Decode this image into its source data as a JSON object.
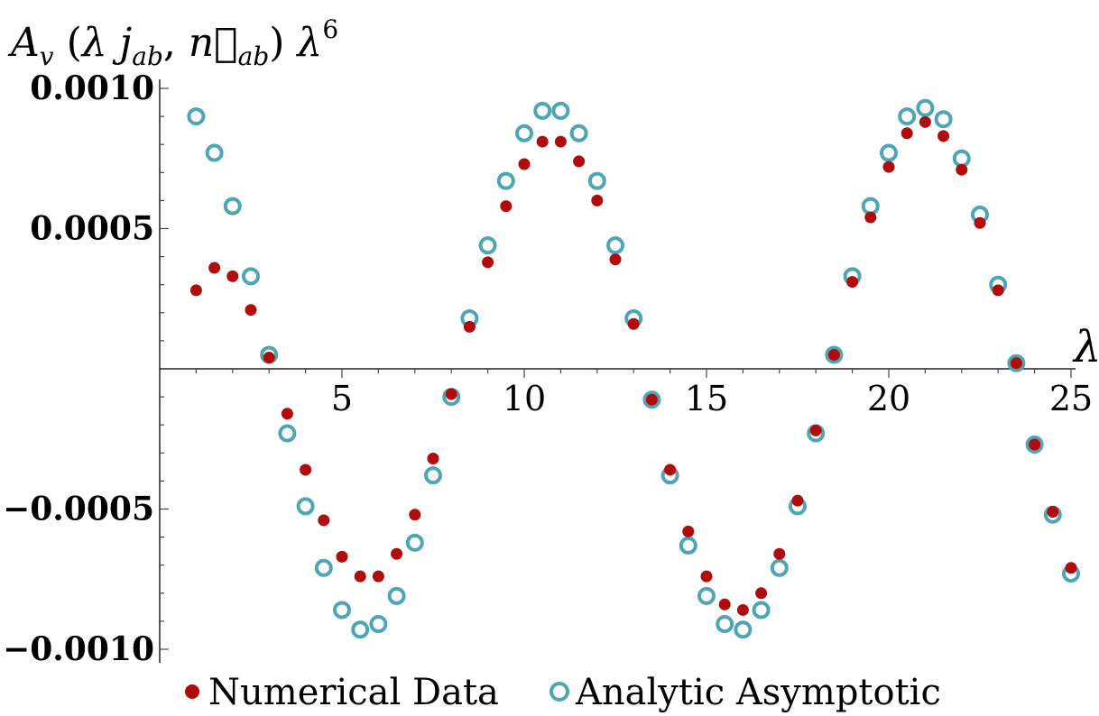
{
  "chart_data": {
    "type": "scatter",
    "ylabel": "A_v (λ j_ab, n⃗_ab) λ^6",
    "xlabel": "λ",
    "xlim": [
      0,
      25
    ],
    "ylim": [
      -0.001,
      0.001
    ],
    "x_ticks": [
      "5",
      "10",
      "15",
      "20",
      "25"
    ],
    "y_ticks": [
      "0.0010",
      "0.0005",
      "-0.0005",
      "-0.0010"
    ],
    "legend_position": "bottom",
    "series": [
      {
        "name": "Numerical Data",
        "marker": "filled-circle",
        "color": "#b00c0c",
        "x": [
          1,
          1.5,
          2,
          2.5,
          3,
          3.5,
          4,
          4.5,
          5,
          5.5,
          6,
          6.5,
          7,
          7.5,
          8,
          8.5,
          9,
          9.5,
          10,
          10.5,
          11,
          11.5,
          12,
          12.5,
          13,
          13.5,
          14,
          14.5,
          15,
          15.5,
          16,
          16.5,
          17,
          17.5,
          18,
          18.5,
          19,
          19.5,
          20,
          20.5,
          21,
          21.5,
          22,
          22.5,
          23,
          23.5,
          24,
          24.5,
          25
        ],
        "y": [
          0.00028,
          0.00036,
          0.00033,
          0.00021,
          4e-05,
          -0.00016,
          -0.00036,
          -0.00054,
          -0.00067,
          -0.00074,
          -0.00074,
          -0.00066,
          -0.00052,
          -0.00032,
          -9e-05,
          0.00015,
          0.00038,
          0.00058,
          0.00073,
          0.00081,
          0.00081,
          0.00074,
          0.0006,
          0.00039,
          0.00016,
          -0.00011,
          -0.00036,
          -0.00058,
          -0.00074,
          -0.00084,
          -0.00086,
          -0.0008,
          -0.00066,
          -0.00047,
          -0.00022,
          5e-05,
          0.00031,
          0.00054,
          0.00072,
          0.00084,
          0.00088,
          0.00083,
          0.00071,
          0.00052,
          0.00028,
          2e-05,
          -0.00027,
          -0.00051,
          -0.00071
        ]
      },
      {
        "name": "Analytic Asymptotic",
        "marker": "open-circle",
        "color": "#4ea5b4",
        "x": [
          1,
          1.5,
          2,
          2.5,
          3,
          3.5,
          4,
          4.5,
          5,
          5.5,
          6,
          6.5,
          7,
          7.5,
          8,
          8.5,
          9,
          9.5,
          10,
          10.5,
          11,
          11.5,
          12,
          12.5,
          13,
          13.5,
          14,
          14.5,
          15,
          15.5,
          16,
          16.5,
          17,
          17.5,
          18,
          18.5,
          19,
          19.5,
          20,
          20.5,
          21,
          21.5,
          22,
          22.5,
          23,
          23.5,
          24,
          24.5,
          25
        ],
        "y": [
          0.0009,
          0.00077,
          0.00058,
          0.00033,
          5e-05,
          -0.00023,
          -0.00049,
          -0.00071,
          -0.00086,
          -0.00093,
          -0.00091,
          -0.00081,
          -0.00062,
          -0.00038,
          -0.0001,
          0.00018,
          0.00044,
          0.00067,
          0.00084,
          0.00092,
          0.00092,
          0.00084,
          0.00067,
          0.00044,
          0.00018,
          -0.00011,
          -0.00038,
          -0.00063,
          -0.00081,
          -0.00091,
          -0.00093,
          -0.00086,
          -0.00071,
          -0.00049,
          -0.00023,
          5e-05,
          0.00033,
          0.00058,
          0.00077,
          0.0009,
          0.00093,
          0.00089,
          0.00075,
          0.00055,
          0.0003,
          2e-05,
          -0.00027,
          -0.00052,
          -0.00073
        ]
      }
    ]
  }
}
